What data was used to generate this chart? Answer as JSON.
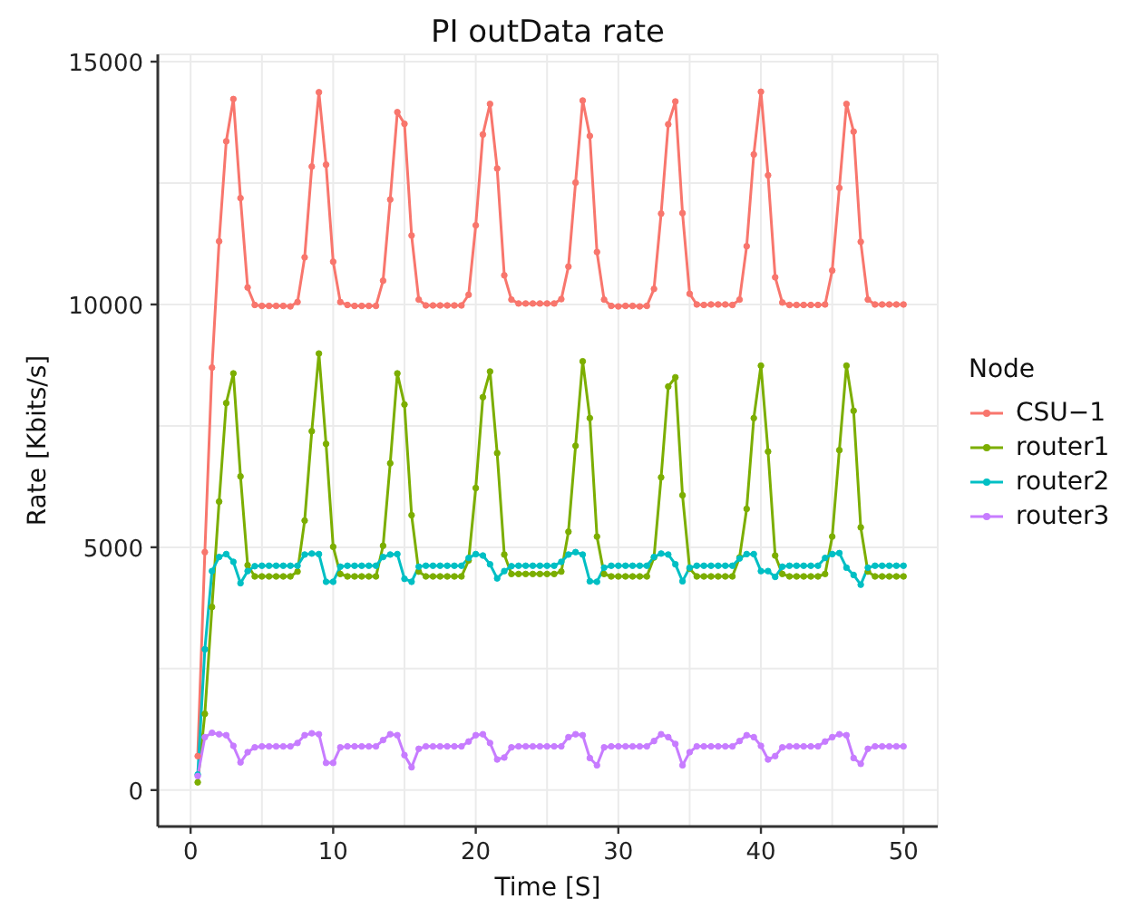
{
  "chart_data": {
    "type": "line",
    "title": "PI outData rate",
    "xlabel": "Time [S]",
    "ylabel": "Rate [Kbits/s]",
    "legend_title": "Node",
    "legend": "right",
    "grid": true,
    "marker": "circle",
    "line_style": "solid",
    "xlim": [
      -2.3,
      52.4
    ],
    "ylim": [
      -750,
      15150
    ],
    "xticks": [
      0,
      {
        "value": 5,
        "label": null
      },
      10,
      {
        "value": 15,
        "label": null
      },
      20,
      {
        "value": 25,
        "label": null
      },
      30,
      {
        "value": 35,
        "label": null
      },
      40,
      {
        "value": 45,
        "label": null
      },
      50
    ],
    "yticks": [
      0,
      {
        "value": 2500,
        "label": null
      },
      5000,
      {
        "value": 7500,
        "label": null
      },
      10000,
      {
        "value": 12500,
        "label": null
      },
      15000
    ],
    "x": [
      0.5,
      1,
      1.5,
      2,
      2.5,
      3,
      3.5,
      4,
      4.5,
      5,
      5.5,
      6,
      6.5,
      7,
      7.5,
      8,
      8.5,
      9,
      9.5,
      10,
      10.5,
      11,
      11.5,
      12,
      12.5,
      13,
      13.5,
      14,
      14.5,
      15,
      15.5,
      16,
      16.5,
      17,
      17.5,
      18,
      18.5,
      19,
      19.5,
      20,
      20.5,
      21,
      21.5,
      22,
      22.5,
      23,
      23.5,
      24,
      24.5,
      25,
      25.5,
      26,
      26.5,
      27,
      27.5,
      28,
      28.5,
      29,
      29.5,
      30,
      30.5,
      31,
      31.5,
      32,
      32.5,
      33,
      33.5,
      34,
      34.5,
      35,
      35.5,
      36,
      36.5,
      37,
      37.5,
      38,
      38.5,
      39,
      39.5,
      40,
      40.5,
      41,
      41.5,
      42,
      42.5,
      43,
      43.5,
      44,
      44.5,
      45,
      45.5,
      46,
      46.5,
      47,
      47.5,
      48,
      48.5,
      49,
      49.5,
      50
    ],
    "series": [
      {
        "name": "CSU−1",
        "color": "#f8766d",
        "values": [
          700,
          4900,
          8700,
          11300,
          13360,
          14230,
          12190,
          10350,
          9990,
          9970,
          9970,
          9970,
          9970,
          9960,
          10050,
          10970,
          12840,
          14370,
          12880,
          10880,
          10050,
          9990,
          9970,
          9970,
          9970,
          9970,
          10490,
          12160,
          13960,
          13720,
          11420,
          10100,
          9980,
          9980,
          9980,
          9980,
          9980,
          9980,
          10200,
          11630,
          13500,
          14130,
          12800,
          10600,
          10100,
          10020,
          10020,
          10020,
          10020,
          10020,
          10020,
          10110,
          10780,
          12510,
          14200,
          13470,
          11080,
          10100,
          9970,
          9960,
          9970,
          9970,
          9960,
          9970,
          10320,
          11870,
          13710,
          14180,
          11880,
          10220,
          10000,
          9990,
          10000,
          10000,
          10000,
          9990,
          10100,
          11200,
          13090,
          14380,
          12660,
          10560,
          10040,
          9990,
          9990,
          9990,
          9990,
          9990,
          10000,
          10700,
          12400,
          14130,
          13560,
          11290,
          10100,
          10000,
          10000,
          10000,
          10000,
          10000
        ]
      },
      {
        "name": "router1",
        "color": "#7cae00",
        "values": [
          160,
          1570,
          3770,
          5940,
          7970,
          8580,
          6460,
          4630,
          4400,
          4400,
          4400,
          4400,
          4400,
          4400,
          4500,
          5550,
          7390,
          8990,
          7130,
          5010,
          4450,
          4400,
          4400,
          4400,
          4400,
          4400,
          5030,
          6730,
          8580,
          7940,
          5660,
          4500,
          4400,
          4400,
          4400,
          4400,
          4400,
          4400,
          4730,
          6220,
          8090,
          8620,
          6940,
          4850,
          4450,
          4450,
          4450,
          4450,
          4450,
          4450,
          4450,
          4500,
          5320,
          7090,
          8830,
          7660,
          5220,
          4450,
          4400,
          4400,
          4400,
          4400,
          4400,
          4400,
          4790,
          6440,
          8310,
          8500,
          6070,
          4560,
          4400,
          4400,
          4400,
          4400,
          4400,
          4400,
          4790,
          5790,
          7660,
          8740,
          6970,
          4830,
          4450,
          4400,
          4400,
          4400,
          4400,
          4400,
          4450,
          5220,
          7000,
          8740,
          7810,
          5410,
          4500,
          4400,
          4400,
          4400,
          4400,
          4400
        ]
      },
      {
        "name": "router2",
        "color": "#00bfc4",
        "values": [
          320,
          2900,
          4510,
          4800,
          4860,
          4700,
          4260,
          4510,
          4610,
          4620,
          4620,
          4620,
          4620,
          4620,
          4620,
          4850,
          4870,
          4860,
          4290,
          4290,
          4600,
          4620,
          4620,
          4620,
          4620,
          4620,
          4800,
          4850,
          4860,
          4350,
          4290,
          4600,
          4620,
          4620,
          4620,
          4620,
          4620,
          4620,
          4780,
          4860,
          4830,
          4650,
          4360,
          4510,
          4610,
          4620,
          4620,
          4620,
          4620,
          4620,
          4620,
          4700,
          4850,
          4900,
          4850,
          4300,
          4290,
          4580,
          4620,
          4620,
          4620,
          4620,
          4620,
          4620,
          4800,
          4870,
          4850,
          4650,
          4300,
          4580,
          4620,
          4620,
          4620,
          4620,
          4620,
          4620,
          4770,
          4860,
          4860,
          4510,
          4510,
          4390,
          4600,
          4620,
          4620,
          4620,
          4620,
          4620,
          4780,
          4860,
          4880,
          4580,
          4430,
          4230,
          4580,
          4620,
          4620,
          4620,
          4620,
          4620
        ]
      },
      {
        "name": "router3",
        "color": "#c77cff",
        "values": [
          290,
          1090,
          1180,
          1150,
          1130,
          910,
          570,
          780,
          880,
          900,
          900,
          900,
          900,
          900,
          970,
          1130,
          1170,
          1150,
          560,
          560,
          880,
          900,
          900,
          900,
          900,
          900,
          1030,
          1150,
          1130,
          720,
          470,
          850,
          900,
          900,
          900,
          900,
          900,
          900,
          1000,
          1130,
          1150,
          970,
          630,
          670,
          880,
          900,
          900,
          900,
          900,
          900,
          900,
          900,
          1090,
          1150,
          1130,
          660,
          510,
          880,
          900,
          900,
          900,
          900,
          900,
          900,
          1010,
          1150,
          1090,
          950,
          510,
          780,
          900,
          900,
          900,
          900,
          900,
          900,
          1010,
          1130,
          1090,
          910,
          630,
          700,
          880,
          900,
          900,
          900,
          900,
          900,
          1000,
          1090,
          1150,
          1130,
          660,
          540,
          850,
          900,
          900,
          900,
          900,
          900
        ]
      }
    ]
  }
}
